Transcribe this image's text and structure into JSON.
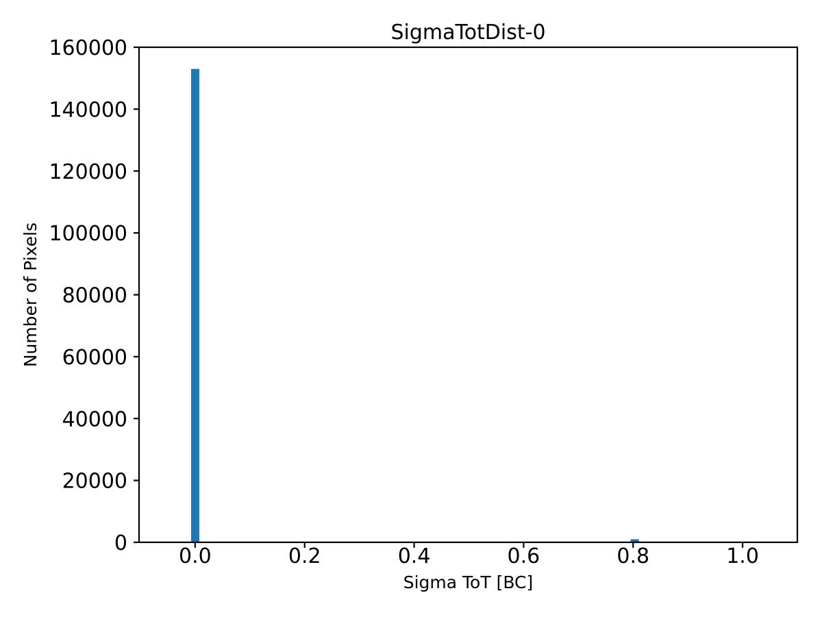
{
  "figure": {
    "background": "#ffffff",
    "frame_color": "#000000",
    "text_color": "#000000"
  },
  "chart_data": {
    "type": "bar",
    "subtype": "histogram",
    "title": "SigmaTotDist-0",
    "xlabel": "Sigma ToT [BC]",
    "ylabel": "Number of Pixels",
    "xlim": [
      -0.1025,
      1.1
    ],
    "ylim": [
      0,
      160000
    ],
    "grid": false,
    "legend": "none",
    "bar_color": "#1f77b4",
    "bar_width": 0.015,
    "bars": [
      {
        "x": 0.0,
        "count": 153000
      },
      {
        "x": 0.803,
        "count": 1000
      }
    ],
    "xticks": {
      "values": [
        0.0,
        0.2,
        0.4,
        0.6,
        0.8,
        1.0
      ],
      "labels": [
        "0.0",
        "0.2",
        "0.4",
        "0.6",
        "0.8",
        "1.0"
      ]
    },
    "yticks": {
      "values": [
        0,
        20000,
        40000,
        60000,
        80000,
        100000,
        120000,
        140000,
        160000
      ],
      "labels": [
        "0",
        "20000",
        "40000",
        "60000",
        "80000",
        "100000",
        "120000",
        "140000",
        "160000"
      ]
    }
  }
}
